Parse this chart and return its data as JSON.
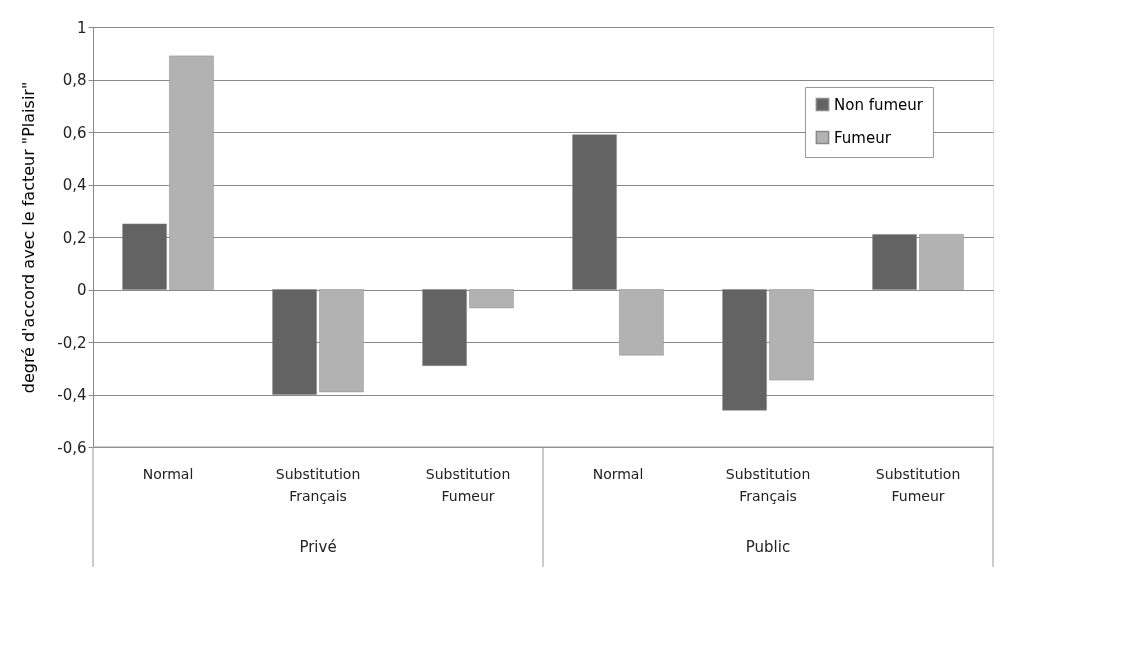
{
  "chart_data": {
    "type": "bar",
    "ylabel": "degré d'accord avec le facteur \"Plaisir\"",
    "categories": [
      "Normal",
      "Substitution Français",
      "Substitution Fumeur",
      "Normal",
      "Substitution Français",
      "Substitution Fumeur"
    ],
    "series": [
      {
        "name": "Non fumeur",
        "color": "#636363",
        "values": [
          0.25,
          -0.4,
          -0.29,
          0.59,
          -0.46,
          0.21
        ]
      },
      {
        "name": "Fumeur",
        "color": "#b2b2b2",
        "values": [
          0.89,
          -0.39,
          -0.07,
          -0.25,
          -0.345,
          0.21
        ]
      }
    ],
    "annotations": [
      "Privé",
      "Public"
    ],
    "ylim": [
      -0.6,
      1
    ],
    "yticks": [
      {
        "value": -0.6,
        "label": "-0,6"
      },
      {
        "value": -0.4,
        "label": "-0,4"
      },
      {
        "value": -0.2,
        "label": "-0,2"
      },
      0,
      {
        "value": 0.2,
        "label": "0,2"
      },
      {
        "value": 0.4,
        "label": "0,4"
      },
      {
        "value": 0.6,
        "label": "0,6"
      },
      {
        "value": 0.8,
        "label": "0,8"
      },
      1
    ],
    "grid": "y",
    "legend": "top right"
  }
}
